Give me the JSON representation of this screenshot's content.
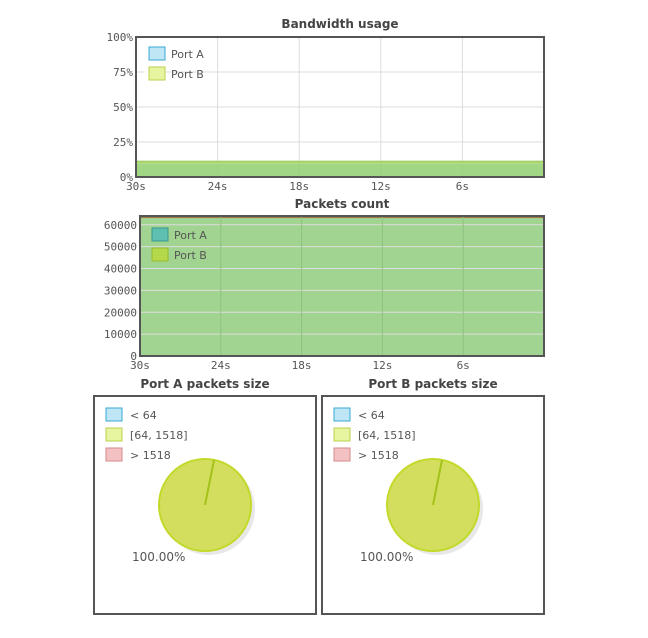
{
  "colors": {
    "port_a_line": "#b8e38a",
    "port_a_fill": "#8fd17a",
    "port_b_line": "#a4d16a",
    "packets_fill": "#a2d491",
    "packets_top_line": "#9a6b3a",
    "lt64": "#bfe6f5",
    "lt64_border": "#3aa8d8",
    "mid": "#e8f5a0",
    "mid_border": "#b9d34c",
    "gt1518": "#f3c1c1",
    "gt1518_border": "#d68a8a",
    "pie_fill": "#d3de5e",
    "pie_edge": "#c3d92a",
    "frame": "#555555",
    "grid": "#dddddd"
  },
  "chart_data": [
    {
      "type": "area",
      "title": "Bandwidth usage",
      "xlabel": "",
      "ylabel": "",
      "x_ticks": [
        "30s",
        "24s",
        "18s",
        "12s",
        "6s"
      ],
      "y_ticks": [
        "100%",
        "75%",
        "50%",
        "25%",
        "0%"
      ],
      "ylim": [
        0,
        100
      ],
      "x": [
        30,
        0
      ],
      "legend_position": "top-left",
      "grid": true,
      "series": [
        {
          "name": "Port A",
          "values": [
            10,
            10
          ]
        },
        {
          "name": "Port B",
          "values": [
            11,
            11
          ]
        }
      ]
    },
    {
      "type": "area",
      "title": "Packets count",
      "xlabel": "",
      "ylabel": "",
      "x_ticks": [
        "30s",
        "24s",
        "18s",
        "12s",
        "6s"
      ],
      "y_ticks": [
        "60000",
        "50000",
        "40000",
        "30000",
        "20000",
        "10000",
        "0"
      ],
      "ylim": [
        0,
        64000
      ],
      "x": [
        30,
        0
      ],
      "legend_position": "top-left",
      "grid": true,
      "series": [
        {
          "name": "Port A",
          "values": [
            63500,
            63500
          ]
        },
        {
          "name": "Port B",
          "values": [
            63500,
            63500
          ]
        }
      ]
    },
    {
      "type": "pie",
      "title": "Port A packets size",
      "categories": [
        "< 64",
        "[64, 1518]",
        "> 1518"
      ],
      "values": [
        0,
        100,
        0
      ],
      "slice_label": "100.00%",
      "legend_position": "top-left"
    },
    {
      "type": "pie",
      "title": "Port B packets size",
      "categories": [
        "< 64",
        "[64, 1518]",
        "> 1518"
      ],
      "values": [
        0,
        100,
        0
      ],
      "slice_label": "100.00%",
      "legend_position": "top-left"
    }
  ]
}
